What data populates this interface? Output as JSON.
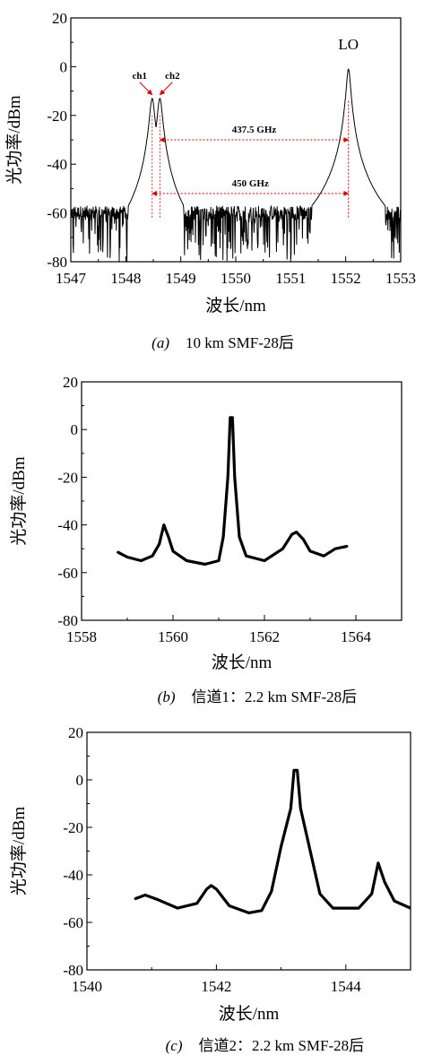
{
  "chart_data": [
    {
      "type": "line",
      "caption_tag": "(a)",
      "caption_text": "10 km SMF-28后",
      "xlabel": "波长/nm",
      "ylabel": "光功率/dBm",
      "xlim": [
        1547,
        1553
      ],
      "ylim": [
        -80,
        20
      ],
      "xticks": [
        1547,
        1548,
        1549,
        1550,
        1551,
        1552,
        1553
      ],
      "yticks": [
        20,
        0,
        -20,
        -40,
        -60,
        -80
      ],
      "noise_floor": -60,
      "peaks": [
        {
          "label": "ch1",
          "x": 1548.48,
          "y": -13
        },
        {
          "label": "ch2",
          "x": 1548.62,
          "y": -13
        },
        {
          "label": "LO",
          "x": 1552.05,
          "y": -1
        }
      ],
      "annotations": [
        {
          "text": "437.5 GHz",
          "x1": 1548.62,
          "x2": 1552.05,
          "y": -30
        },
        {
          "text": "450 GHz",
          "x1": 1548.48,
          "x2": 1552.05,
          "y": -52
        }
      ],
      "grid": false
    },
    {
      "type": "line",
      "caption_tag": "(b)",
      "caption_text": "信道1：2.2 km SMF-28后",
      "xlabel": "波长/nm",
      "ylabel": "光功率/dBm",
      "xlim": [
        1558,
        1565
      ],
      "ylim": [
        -80,
        20
      ],
      "xticks": [
        1558,
        1560,
        1562,
        1564
      ],
      "yticks": [
        20,
        0,
        -20,
        -40,
        -60,
        -80
      ],
      "points": [
        [
          1558.8,
          -51.5
        ],
        [
          1559.0,
          -53.5
        ],
        [
          1559.3,
          -55
        ],
        [
          1559.55,
          -53
        ],
        [
          1559.7,
          -48
        ],
        [
          1559.8,
          -40
        ],
        [
          1559.9,
          -45
        ],
        [
          1560.0,
          -51
        ],
        [
          1560.3,
          -55
        ],
        [
          1560.7,
          -56.5
        ],
        [
          1561.0,
          -55
        ],
        [
          1561.1,
          -45
        ],
        [
          1561.2,
          -20
        ],
        [
          1561.25,
          5
        ],
        [
          1561.3,
          5
        ],
        [
          1561.35,
          -20
        ],
        [
          1561.45,
          -45
        ],
        [
          1561.6,
          -53
        ],
        [
          1562.0,
          -55
        ],
        [
          1562.4,
          -50
        ],
        [
          1562.6,
          -44
        ],
        [
          1562.7,
          -43
        ],
        [
          1562.85,
          -46
        ],
        [
          1563.0,
          -51
        ],
        [
          1563.3,
          -53
        ],
        [
          1563.55,
          -50
        ],
        [
          1563.8,
          -49
        ]
      ],
      "grid": false
    },
    {
      "type": "line",
      "caption_tag": "(c)",
      "caption_text": "信道2：2.2 km SMF-28后",
      "xlabel": "波长/nm",
      "ylabel": "光功率/dBm",
      "xlim": [
        1540,
        1545
      ],
      "ylim": [
        -80,
        20
      ],
      "xticks": [
        1540,
        1542,
        1544
      ],
      "yticks": [
        20,
        0,
        -20,
        -40,
        -60,
        -80
      ],
      "points": [
        [
          1540.75,
          -50
        ],
        [
          1540.9,
          -48.5
        ],
        [
          1541.1,
          -50.5
        ],
        [
          1541.4,
          -54
        ],
        [
          1541.7,
          -52
        ],
        [
          1541.85,
          -46
        ],
        [
          1541.92,
          -44.5
        ],
        [
          1542.0,
          -46
        ],
        [
          1542.2,
          -53
        ],
        [
          1542.5,
          -56
        ],
        [
          1542.7,
          -55
        ],
        [
          1542.85,
          -47
        ],
        [
          1543.0,
          -28
        ],
        [
          1543.15,
          -12
        ],
        [
          1543.2,
          4
        ],
        [
          1543.25,
          4
        ],
        [
          1543.3,
          -12
        ],
        [
          1543.45,
          -30
        ],
        [
          1543.6,
          -48
        ],
        [
          1543.8,
          -54
        ],
        [
          1544.2,
          -54
        ],
        [
          1544.4,
          -48
        ],
        [
          1544.5,
          -35
        ],
        [
          1544.6,
          -43
        ],
        [
          1544.75,
          -51
        ],
        [
          1545.0,
          -54
        ]
      ],
      "grid": false
    }
  ]
}
